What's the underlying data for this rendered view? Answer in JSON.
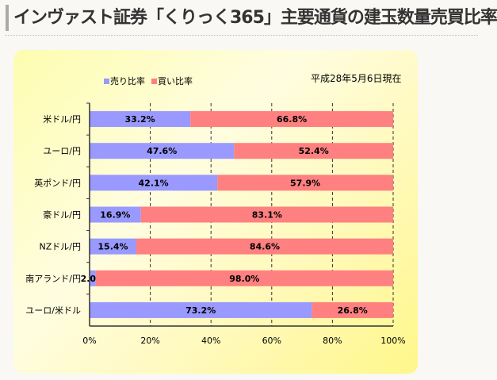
{
  "title": "インヴァスト証券「くりっく365」主要通貨の建玉数量売買比率",
  "date": "平成28年5月6日現在",
  "chart_data": {
    "type": "bar",
    "orientation": "horizontal-stacked-100",
    "categories": [
      "米ドル/円",
      "ユーロ/円",
      "英ポンド/円",
      "豪ドル/円",
      "NZドル/円",
      "南アランド/円",
      "ユーロ/米ドル"
    ],
    "series": [
      {
        "name": "売り比率",
        "color": "#9999ff",
        "values": [
          33.2,
          47.6,
          42.1,
          16.9,
          15.4,
          2.0,
          73.2
        ]
      },
      {
        "name": "買い比率",
        "color": "#ff8080",
        "values": [
          66.8,
          52.4,
          57.9,
          83.1,
          84.6,
          98.0,
          26.8
        ]
      }
    ],
    "xticks": [
      "0%",
      "20%",
      "40%",
      "60%",
      "80%",
      "100%"
    ],
    "xlim": [
      0,
      100
    ],
    "grid": "vertical dashed",
    "legend": "top-left"
  }
}
